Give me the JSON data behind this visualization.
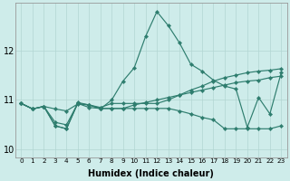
{
  "xlabel": "Humidex (Indice chaleur)",
  "xlim": [
    -0.5,
    23.5
  ],
  "ylim": [
    9.85,
    12.95
  ],
  "yticks": [
    10,
    11,
    12
  ],
  "xticks": [
    0,
    1,
    2,
    3,
    4,
    5,
    6,
    7,
    8,
    9,
    10,
    11,
    12,
    13,
    14,
    15,
    16,
    17,
    18,
    19,
    20,
    21,
    22,
    23
  ],
  "background_color": "#ceecea",
  "grid_color": "#b2d6d3",
  "line_color": "#2e7d6e",
  "line1_y": [
    10.93,
    10.82,
    10.87,
    10.82,
    10.78,
    10.92,
    10.9,
    10.82,
    11.0,
    11.38,
    11.65,
    12.28,
    12.78,
    12.5,
    12.15,
    11.72,
    11.58,
    11.4,
    11.28,
    11.22,
    10.45,
    11.05,
    10.72,
    11.55
  ],
  "line2_y": [
    10.93,
    10.82,
    10.87,
    10.48,
    10.42,
    10.95,
    10.9,
    10.85,
    10.93,
    10.93,
    10.93,
    10.93,
    10.93,
    11.0,
    11.1,
    11.2,
    11.28,
    11.38,
    11.45,
    11.5,
    11.55,
    11.58,
    11.6,
    11.63
  ],
  "line3_y": [
    10.93,
    10.82,
    10.87,
    10.55,
    10.5,
    10.93,
    10.9,
    10.83,
    10.83,
    10.83,
    10.9,
    10.95,
    11.0,
    11.05,
    11.1,
    11.15,
    11.2,
    11.25,
    11.3,
    11.35,
    11.38,
    11.4,
    11.45,
    11.48
  ],
  "line4_y": [
    10.93,
    10.82,
    10.87,
    10.48,
    10.42,
    10.93,
    10.85,
    10.83,
    10.83,
    10.83,
    10.83,
    10.83,
    10.83,
    10.83,
    10.78,
    10.72,
    10.65,
    10.6,
    10.42,
    10.42,
    10.42,
    10.42,
    10.42,
    10.48
  ]
}
